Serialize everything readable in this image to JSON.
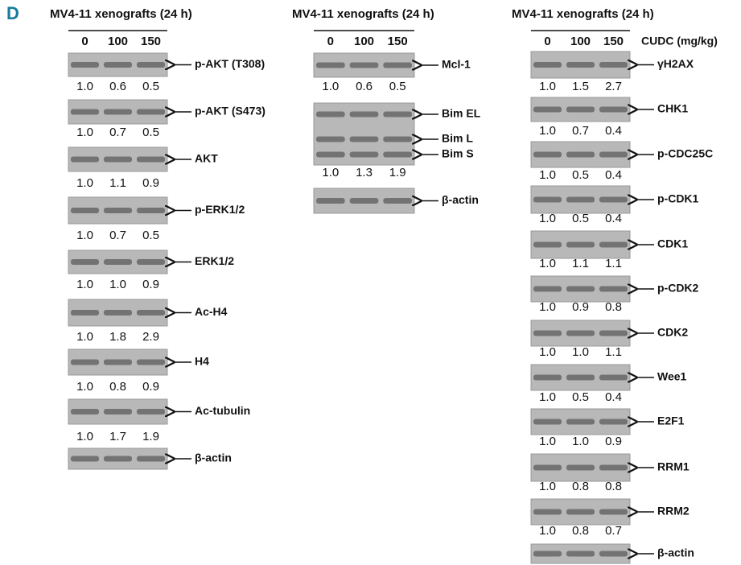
{
  "panel_label": "D",
  "columns": [
    {
      "title": "MV4-11 xenografts (24 h)",
      "doses": [
        "0",
        "100",
        "150"
      ],
      "blots": [
        {
          "labels": [
            "p-AKT (T308)"
          ],
          "quant": [
            "1.0",
            "0.6",
            "0.5"
          ]
        },
        {
          "labels": [
            "p-AKT (S473)"
          ],
          "quant": [
            "1.0",
            "0.7",
            "0.5"
          ]
        },
        {
          "labels": [
            "AKT"
          ],
          "quant": [
            "1.0",
            "1.1",
            "0.9"
          ]
        },
        {
          "labels": [
            "p-ERK1/2"
          ],
          "quant": [
            "1.0",
            "0.7",
            "0.5"
          ]
        },
        {
          "labels": [
            "ERK1/2"
          ],
          "quant": [
            "1.0",
            "1.0",
            "0.9"
          ]
        },
        {
          "labels": [
            "Ac-H4"
          ],
          "quant": [
            "1.0",
            "1.8",
            "2.9"
          ]
        },
        {
          "labels": [
            "H4"
          ],
          "quant": [
            "1.0",
            "0.8",
            "0.9"
          ]
        },
        {
          "labels": [
            "Ac-tubulin"
          ],
          "quant": [
            "1.0",
            "1.7",
            "1.9"
          ]
        },
        {
          "labels": [
            "β-actin"
          ]
        }
      ]
    },
    {
      "title": "MV4-11 xenografts (24 h)",
      "doses": [
        "0",
        "100",
        "150"
      ],
      "blots": [
        {
          "labels": [
            "Mcl-1"
          ],
          "quant": [
            "1.0",
            "0.6",
            "0.5"
          ]
        },
        {
          "labels": [
            "Bim EL",
            "Bim L",
            "Bim S"
          ],
          "quant": [
            "1.0",
            "1.3",
            "1.9"
          ]
        },
        {
          "labels": [
            "β-actin"
          ]
        }
      ]
    },
    {
      "title": "MV4-11 xenografts (24 h)",
      "doses": [
        "0",
        "100",
        "150"
      ],
      "unit": "CUDC (mg/kg)",
      "blots": [
        {
          "labels": [
            "γH2AX"
          ],
          "quant": [
            "1.0",
            "1.5",
            "2.7"
          ]
        },
        {
          "labels": [
            "CHK1"
          ],
          "quant": [
            "1.0",
            "0.7",
            "0.4"
          ]
        },
        {
          "labels": [
            "p-CDC25C"
          ],
          "quant": [
            "1.0",
            "0.5",
            "0.4"
          ]
        },
        {
          "labels": [
            "p-CDK1"
          ],
          "quant": [
            "1.0",
            "0.5",
            "0.4"
          ]
        },
        {
          "labels": [
            "CDK1"
          ],
          "quant": [
            "1.0",
            "1.1",
            "1.1"
          ]
        },
        {
          "labels": [
            "p-CDK2"
          ],
          "quant": [
            "1.0",
            "0.9",
            "0.8"
          ]
        },
        {
          "labels": [
            "CDK2"
          ],
          "quant": [
            "1.0",
            "1.0",
            "1.1"
          ]
        },
        {
          "labels": [
            "Wee1"
          ],
          "quant": [
            "1.0",
            "0.5",
            "0.4"
          ]
        },
        {
          "labels": [
            "E2F1"
          ],
          "quant": [
            "1.0",
            "1.0",
            "0.9"
          ]
        },
        {
          "labels": [
            "RRM1"
          ],
          "quant": [
            "1.0",
            "0.8",
            "0.8"
          ]
        },
        {
          "labels": [
            "RRM2"
          ],
          "quant": [
            "1.0",
            "0.8",
            "0.7"
          ]
        },
        {
          "labels": [
            "β-actin"
          ]
        }
      ]
    }
  ]
}
